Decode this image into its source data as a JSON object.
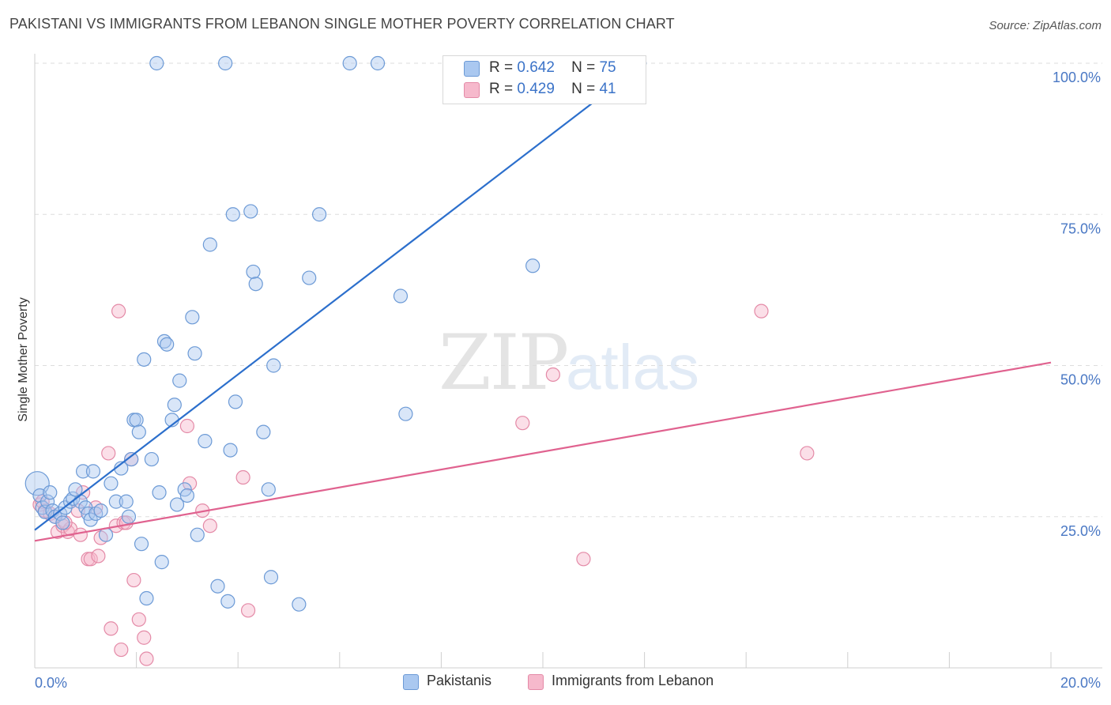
{
  "title": "PAKISTANI VS IMMIGRANTS FROM LEBANON SINGLE MOTHER POVERTY CORRELATION CHART",
  "source": "Source: ZipAtlas.com",
  "colors": {
    "pakistanis_fill": "#aac8f0",
    "pakistanis_stroke": "#6c9ad6",
    "pakistanis_line": "#2c6fcc",
    "lebanon_fill": "#f6b9cc",
    "lebanon_stroke": "#e48aa7",
    "lebanon_line": "#e0628f",
    "tick_text": "#4a78c4",
    "grid": "#dddddd"
  },
  "legend": {
    "r_label": "R =",
    "n_label": "N =",
    "pakistanis": {
      "r": "0.642",
      "n": "75"
    },
    "lebanon": {
      "r": "0.429",
      "n": "41"
    }
  },
  "chart_data": {
    "type": "scatter",
    "title": "PAKISTANI VS IMMIGRANTS FROM LEBANON SINGLE MOTHER POVERTY CORRELATION CHART",
    "xlabel": "",
    "ylabel": "Single Mother Poverty",
    "xlim": [
      0,
      20
    ],
    "ylim": [
      0,
      100
    ],
    "x_ticks": [
      "0.0%",
      "20.0%"
    ],
    "y_ticks": [
      {
        "value": 25,
        "label": "25.0%"
      },
      {
        "value": 50,
        "label": "50.0%"
      },
      {
        "value": 75,
        "label": "75.0%"
      },
      {
        "value": 100,
        "label": "100.0%"
      }
    ],
    "grid": true,
    "legend_position": "bottom",
    "series": [
      {
        "name": "Pakistanis",
        "trend": {
          "x": [
            0.0,
            12.0
          ],
          "y": [
            22.8,
            100.0
          ]
        },
        "points": [
          [
            0.05,
            30.5
          ],
          [
            0.1,
            28.5
          ],
          [
            0.15,
            26.5
          ],
          [
            0.2,
            25.8
          ],
          [
            0.25,
            27.5
          ],
          [
            0.3,
            29.0
          ],
          [
            0.35,
            26.0
          ],
          [
            0.4,
            25.0
          ],
          [
            0.5,
            25.5
          ],
          [
            0.55,
            24.0
          ],
          [
            0.6,
            26.5
          ],
          [
            0.7,
            27.5
          ],
          [
            0.75,
            28.0
          ],
          [
            0.8,
            29.5
          ],
          [
            0.9,
            27.5
          ],
          [
            0.95,
            32.5
          ],
          [
            1.0,
            26.5
          ],
          [
            1.05,
            25.5
          ],
          [
            1.1,
            24.5
          ],
          [
            1.15,
            32.5
          ],
          [
            1.2,
            25.5
          ],
          [
            1.3,
            26.0
          ],
          [
            1.4,
            22.0
          ],
          [
            1.5,
            30.5
          ],
          [
            1.6,
            27.5
          ],
          [
            1.7,
            33.0
          ],
          [
            1.8,
            27.5
          ],
          [
            1.85,
            25.0
          ],
          [
            1.9,
            34.5
          ],
          [
            1.95,
            41.0
          ],
          [
            2.0,
            41.0
          ],
          [
            2.05,
            39.0
          ],
          [
            2.1,
            20.5
          ],
          [
            2.15,
            51.0
          ],
          [
            2.2,
            11.5
          ],
          [
            2.3,
            34.5
          ],
          [
            2.4,
            100.0
          ],
          [
            2.45,
            29.0
          ],
          [
            2.5,
            17.5
          ],
          [
            2.55,
            54.0
          ],
          [
            2.6,
            53.5
          ],
          [
            2.7,
            41.0
          ],
          [
            2.75,
            43.5
          ],
          [
            2.8,
            27.0
          ],
          [
            2.85,
            47.5
          ],
          [
            2.95,
            29.5
          ],
          [
            3.0,
            28.5
          ],
          [
            3.1,
            58.0
          ],
          [
            3.15,
            52.0
          ],
          [
            3.2,
            22.0
          ],
          [
            3.35,
            37.5
          ],
          [
            3.45,
            70.0
          ],
          [
            3.6,
            13.5
          ],
          [
            3.75,
            100.0
          ],
          [
            3.8,
            11.0
          ],
          [
            3.85,
            36.0
          ],
          [
            3.9,
            75.0
          ],
          [
            3.95,
            44.0
          ],
          [
            4.25,
            75.5
          ],
          [
            4.3,
            65.5
          ],
          [
            4.35,
            63.5
          ],
          [
            4.5,
            39.0
          ],
          [
            4.6,
            29.5
          ],
          [
            4.65,
            15.0
          ],
          [
            4.7,
            50.0
          ],
          [
            5.2,
            10.5
          ],
          [
            5.4,
            64.5
          ],
          [
            5.6,
            75.0
          ],
          [
            6.2,
            100.0
          ],
          [
            6.75,
            100.0
          ],
          [
            7.2,
            61.5
          ],
          [
            7.3,
            42.0
          ],
          [
            9.5,
            100.0
          ],
          [
            9.8,
            66.5
          ],
          [
            11.9,
            100.0
          ]
        ]
      },
      {
        "name": "Immigrants from Lebanon",
        "trend": {
          "x": [
            0.0,
            20.0
          ],
          "y": [
            21.0,
            50.5
          ]
        },
        "points": [
          [
            0.1,
            27.0
          ],
          [
            0.2,
            26.0
          ],
          [
            0.3,
            25.5
          ],
          [
            0.4,
            25.0
          ],
          [
            0.45,
            22.5
          ],
          [
            0.55,
            23.5
          ],
          [
            0.65,
            22.5
          ],
          [
            0.7,
            23.0
          ],
          [
            0.85,
            26.0
          ],
          [
            0.9,
            22.0
          ],
          [
            0.95,
            29.0
          ],
          [
            1.05,
            18.0
          ],
          [
            1.1,
            18.0
          ],
          [
            1.2,
            26.5
          ],
          [
            1.25,
            18.5
          ],
          [
            1.3,
            21.5
          ],
          [
            1.45,
            35.5
          ],
          [
            1.5,
            6.5
          ],
          [
            1.6,
            23.5
          ],
          [
            1.65,
            59.0
          ],
          [
            1.7,
            3.0
          ],
          [
            1.75,
            24.0
          ],
          [
            1.9,
            34.5
          ],
          [
            1.95,
            14.5
          ],
          [
            2.05,
            8.0
          ],
          [
            2.15,
            5.0
          ],
          [
            2.2,
            1.5
          ],
          [
            3.0,
            40.0
          ],
          [
            3.05,
            30.5
          ],
          [
            3.3,
            26.0
          ],
          [
            3.45,
            23.5
          ],
          [
            4.1,
            31.5
          ],
          [
            4.2,
            9.5
          ],
          [
            10.2,
            48.5
          ],
          [
            9.6,
            40.5
          ],
          [
            10.8,
            18.0
          ],
          [
            14.3,
            59.0
          ],
          [
            15.2,
            35.5
          ],
          [
            0.15,
            27.5
          ],
          [
            0.6,
            24.0
          ],
          [
            1.8,
            24.0
          ]
        ]
      }
    ]
  }
}
